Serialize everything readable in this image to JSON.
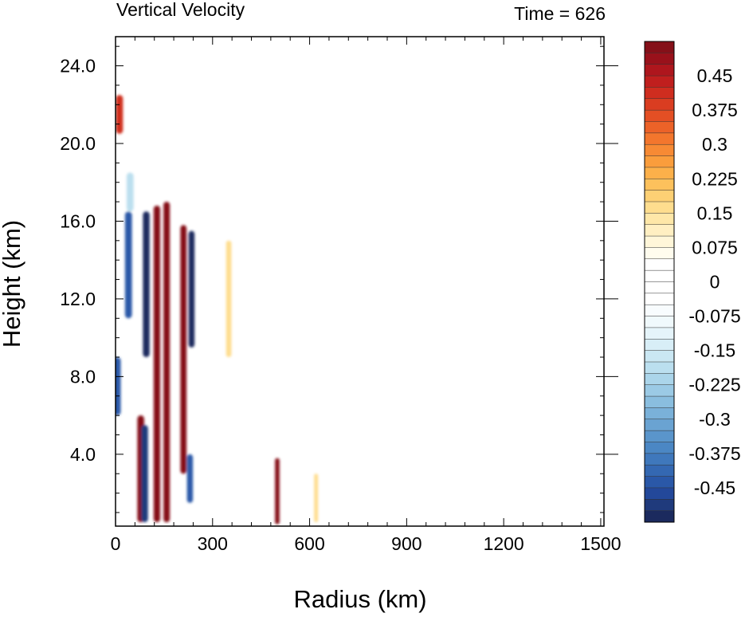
{
  "chart_data": {
    "type": "heatmap",
    "title": "Vertical Velocity",
    "time_label": "Time = 626",
    "xlabel": "Radius (km)",
    "ylabel": "Height (km)",
    "xlim": [
      0,
      1510
    ],
    "ylim": [
      0.3,
      25.5
    ],
    "x_ticks": [
      0,
      300,
      600,
      900,
      1200,
      1500
    ],
    "x_tick_labels": [
      "0",
      "300",
      "600",
      "900",
      "1200",
      "1500"
    ],
    "y_ticks": [
      4,
      8,
      12,
      16,
      20,
      24
    ],
    "y_tick_labels": [
      "4.0",
      "8.0",
      "12.0",
      "16.0",
      "20.0",
      "24.0"
    ],
    "colorbar": {
      "levels": [
        -0.525,
        -0.5,
        -0.475,
        -0.45,
        -0.425,
        -0.4,
        -0.375,
        -0.35,
        -0.325,
        -0.3,
        -0.275,
        -0.25,
        -0.225,
        -0.2,
        -0.175,
        -0.15,
        -0.125,
        -0.1,
        -0.075,
        -0.05,
        -0.025,
        0,
        0.025,
        0.05,
        0.075,
        0.1,
        0.125,
        0.15,
        0.175,
        0.2,
        0.225,
        0.25,
        0.275,
        0.3,
        0.325,
        0.35,
        0.375,
        0.4,
        0.425,
        0.45,
        0.475,
        0.5,
        0.525
      ],
      "tick_labels": [
        "0.45",
        "0.375",
        "0.3",
        "0.225",
        "0.15",
        "0.075",
        "0",
        "-0.075",
        "-0.15",
        "-0.225",
        "-0.3",
        "-0.375",
        "-0.45"
      ],
      "colors": [
        "#1b2a5e",
        "#1f3a7c",
        "#23489a",
        "#2a58a8",
        "#3468b2",
        "#3f78bc",
        "#4b87c4",
        "#5a95cb",
        "#6aa3d2",
        "#7ab1d9",
        "#8abedf",
        "#9bcae5",
        "#abd5ea",
        "#bbdfef",
        "#cae7f3",
        "#d8eef7",
        "#e5f4fa",
        "#f0f9fc",
        "#f8fcfe",
        "#ffffff",
        "#ffffff",
        "#ffffff",
        "#ffffff",
        "#fffcee",
        "#fff6d9",
        "#ffefc2",
        "#fee7a8",
        "#fedd8e",
        "#fdd074",
        "#fdc15c",
        "#fcb04a",
        "#fa9d3c",
        "#f78a34",
        "#f3762d",
        "#ec6228",
        "#e44f24",
        "#da3d21",
        "#cf2d1f",
        "#c01f1e",
        "#ae161d",
        "#99111b",
        "#851019"
      ]
    },
    "field_features": [
      {
        "kind": "updraft",
        "r_km": 128,
        "z_min": 0.5,
        "z_max": 16.8,
        "w": 0.55
      },
      {
        "kind": "updraft",
        "r_km": 158,
        "z_min": 0.5,
        "z_max": 17.0,
        "w": 0.55
      },
      {
        "kind": "updraft",
        "r_km": 210,
        "z_min": 3.0,
        "z_max": 15.8,
        "w": 0.5
      },
      {
        "kind": "updraft",
        "r_km": 78,
        "z_min": 0.5,
        "z_max": 6.0,
        "w": 0.5
      },
      {
        "kind": "updraft",
        "r_km": 12,
        "z_min": 20.5,
        "z_max": 22.5,
        "w": 0.4
      },
      {
        "kind": "updraft",
        "r_km": 500,
        "z_min": 0.4,
        "z_max": 3.8,
        "w": 0.5
      },
      {
        "kind": "updraft",
        "r_km": 350,
        "z_min": 9.0,
        "z_max": 15.0,
        "w": 0.15
      },
      {
        "kind": "updraft",
        "r_km": 620,
        "z_min": 0.5,
        "z_max": 3.0,
        "w": 0.15
      },
      {
        "kind": "downdraft",
        "r_km": 95,
        "z_min": 9.0,
        "z_max": 16.5,
        "w": -0.55
      },
      {
        "kind": "downdraft",
        "r_km": 235,
        "z_min": 9.5,
        "z_max": 15.5,
        "w": -0.55
      },
      {
        "kind": "downdraft",
        "r_km": 40,
        "z_min": 11.0,
        "z_max": 16.5,
        "w": -0.45
      },
      {
        "kind": "downdraft",
        "r_km": 90,
        "z_min": 0.5,
        "z_max": 5.5,
        "w": -0.5
      },
      {
        "kind": "downdraft",
        "r_km": 230,
        "z_min": 1.5,
        "z_max": 4.0,
        "w": -0.45
      },
      {
        "kind": "downdraft",
        "r_km": 5,
        "z_min": 6.0,
        "z_max": 9.0,
        "w": -0.45
      },
      {
        "kind": "downdraft",
        "r_km": 45,
        "z_min": 16.5,
        "z_max": 18.5,
        "w": -0.2
      }
    ]
  }
}
